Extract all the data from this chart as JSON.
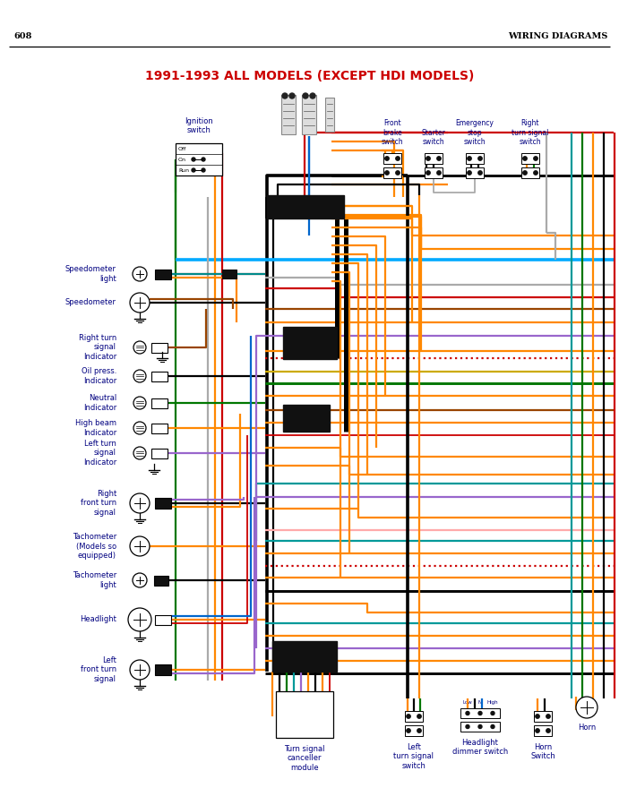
{
  "title": "1991-1993 ALL MODELS (EXCEPT HDI MODELS)",
  "page_num": "608",
  "page_header": "WIRING DIAGRAMS",
  "bg_color": "#ffffff",
  "title_color": "#cc0000",
  "title_fontsize": 10,
  "label_color": "#000080",
  "label_fontsize": 6.0,
  "wire_colors": {
    "black": "#000000",
    "red": "#cc0000",
    "orange": "#ff8800",
    "green": "#007700",
    "blue": "#0066cc",
    "gray": "#aaaaaa",
    "brown": "#994400",
    "purple": "#9966cc",
    "yellow": "#ccaa00",
    "teal": "#009999",
    "pink": "#ffaaaa",
    "light_blue": "#00aaff",
    "dark_green": "#005500",
    "white_wire": "#cccccc"
  }
}
